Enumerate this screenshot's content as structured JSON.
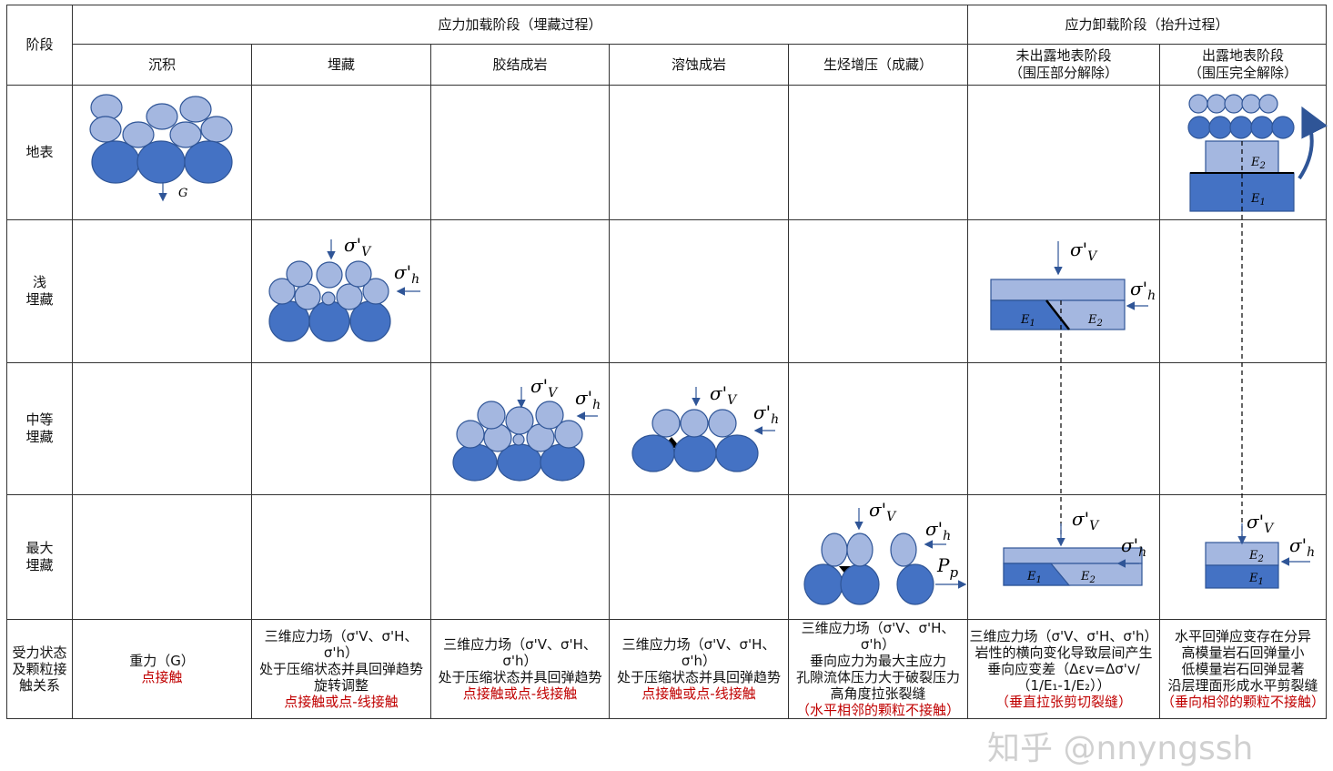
{
  "header": {
    "stage_label": "阶段",
    "loading_group": "应力加载阶段（埋藏过程）",
    "unloading_group": "应力卸载阶段（抬升过程）",
    "columns": [
      "沉积",
      "埋藏",
      "胶结成岩",
      "溶蚀成岩",
      "生烃增压（成藏）"
    ],
    "unload_columns": [
      {
        "line1": "未出露地表阶段",
        "line2": "（围压部分解除）"
      },
      {
        "line1": "出露地表阶段",
        "line2": "（围压完全解除）"
      }
    ]
  },
  "rows": [
    {
      "line1": "地表",
      "line2": ""
    },
    {
      "line1": "浅",
      "line2": "埋藏"
    },
    {
      "line1": "中等",
      "line2": "埋藏"
    },
    {
      "line1": "最大",
      "line2": "埋藏"
    }
  ],
  "summary_row": {
    "label": [
      "受力状态",
      "及颗粒接",
      "触关系"
    ],
    "cells": [
      {
        "black": [
          "重力（G）"
        ],
        "red": "点接触"
      },
      {
        "black": [
          "三维应力场（σ'V、σ'H、σ'h）",
          "处于压缩状态并具回弹趋势",
          "旋转调整"
        ],
        "red": "点接触或点-线接触"
      },
      {
        "black": [
          "三维应力场（σ'V、σ'H、σ'h）",
          "处于压缩状态并具回弹趋势"
        ],
        "red": "点接触或点-线接触"
      },
      {
        "black": [
          "三维应力场（σ'V、σ'H、σ'h）",
          "处于压缩状态并具回弹趋势"
        ],
        "red": "点接触或点-线接触"
      },
      {
        "black": [
          "三维应力场（σ'V、σ'H、σ'h）",
          "垂向应力为最大主应力",
          "孔隙流体压力大于破裂压力",
          "高角度拉张裂缝"
        ],
        "red": "（水平相邻的颗粒不接触）"
      },
      {
        "black": [
          "三维应力场（σ'V、σ'H、σ'h）",
          "岩性的横向变化导致层间产生",
          "垂向应变差（Δεv=Δσ'v/",
          "（1/E₁-1/E₂））"
        ],
        "red": "（垂直拉张剪切裂缝）"
      },
      {
        "black": [
          "水平回弹应变存在分异",
          "高模量岩石回弹量小",
          "低模量岩石回弹显著",
          "沿层理面形成水平剪裂缝"
        ],
        "red": "（垂向相邻的颗粒不接触）"
      }
    ]
  },
  "symbols": {
    "G": "G",
    "sigma_v": "σ'",
    "v_sub": "V",
    "h_sub": "h",
    "Pp": "P",
    "p_sub": "p",
    "E1": "E",
    "E1_sub": "1",
    "E2": "E",
    "E2_sub": "2"
  },
  "colors": {
    "dark_grain": "#4472c4",
    "light_grain": "#a4b7e0",
    "arrow": "#2f5597",
    "red_text": "#c00000"
  },
  "watermark": "知乎 @nnyngssh"
}
